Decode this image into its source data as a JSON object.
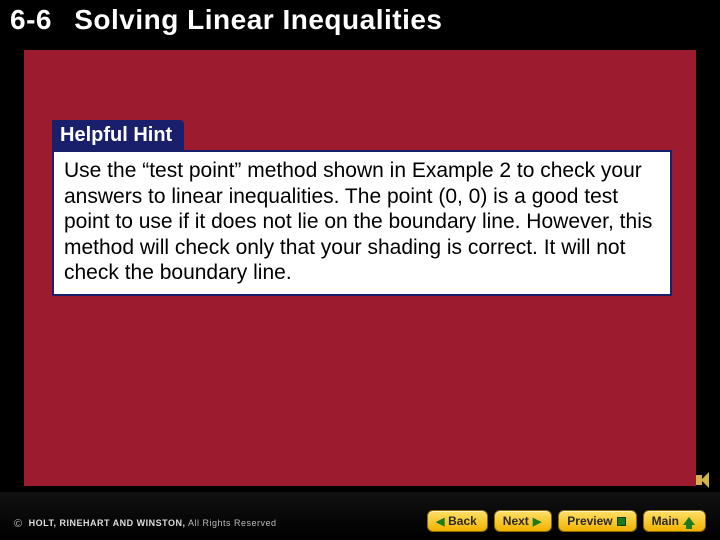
{
  "colors": {
    "page_bg": "#000000",
    "panel_bg": "#9c1b2e",
    "card_bg": "#ffffff",
    "card_border": "#1a1f6b",
    "badge_bg": "#1a1f6b",
    "badge_text": "#ffffff",
    "header_text": "#ffffff",
    "btn_grad_top": "#ffe06a",
    "btn_grad_bot": "#f2b200",
    "btn_icon": "#1e7a1e"
  },
  "header": {
    "section_number": "6-6",
    "title": "Solving Linear Inequalities",
    "fontsize_pt": 28
  },
  "hint": {
    "badge": "Helpful Hint",
    "body": "Use the “test point” method shown in Example 2 to check your answers to linear inequalities. The point (0, 0) is a good test point to use if it does not lie on the boundary line. However, this method will check only that your shading is correct. It will not check the boundary line.",
    "body_fontsize_pt": 21
  },
  "footer": {
    "copyright_symbol": "©",
    "publisher": "HOLT, RINEHART AND WINSTON,",
    "rights": "All Rights Reserved"
  },
  "nav": {
    "back": "Back",
    "next": "Next",
    "preview": "Preview",
    "main": "Main"
  }
}
